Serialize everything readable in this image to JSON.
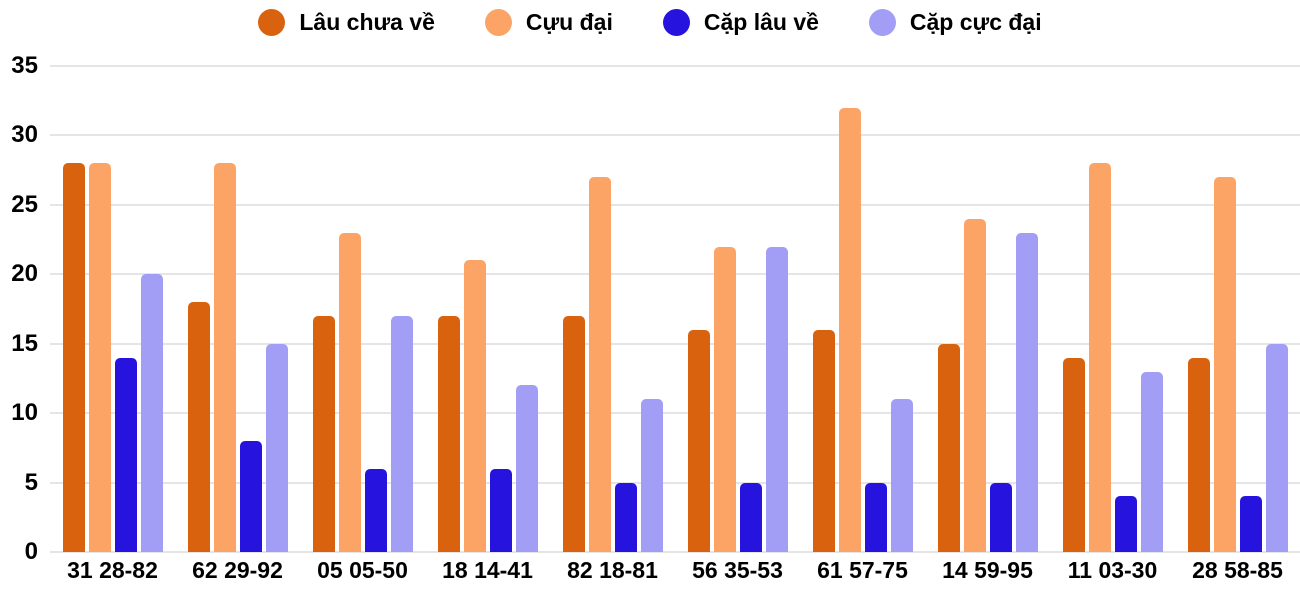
{
  "chart_data": {
    "type": "bar",
    "title": "",
    "xlabel": "",
    "ylabel": "",
    "categories": [
      "31 28-82",
      "62 29-92",
      "05 05-50",
      "18 14-41",
      "82 18-81",
      "56 35-53",
      "61 57-75",
      "14 59-95",
      "11 03-30",
      "28 58-85"
    ],
    "series": [
      {
        "name": "Lâu chưa về",
        "color": "#D9620E",
        "values": [
          28,
          18,
          17,
          17,
          17,
          16,
          16,
          15,
          14,
          14
        ]
      },
      {
        "name": "Cựu đại",
        "color": "#FBA465",
        "values": [
          28,
          28,
          23,
          21,
          27,
          22,
          32,
          24,
          28,
          27
        ]
      },
      {
        "name": "Cặp lâu về",
        "color": "#2613DD",
        "values": [
          14,
          8,
          6,
          6,
          5,
          5,
          5,
          5,
          4,
          4
        ]
      },
      {
        "name": "Cặp cực đại",
        "color": "#A29DF5",
        "values": [
          20,
          15,
          17,
          12,
          11,
          22,
          11,
          23,
          13,
          15
        ]
      }
    ],
    "ylim": [
      0,
      35
    ],
    "yticks": [
      35,
      30,
      25,
      20,
      15,
      10,
      5,
      0
    ],
    "grid": "horizontal",
    "legend_position": "top"
  },
  "colors": {
    "background": "#FFFFFF",
    "gridline": "#E5E5E5",
    "text": "#000000"
  }
}
